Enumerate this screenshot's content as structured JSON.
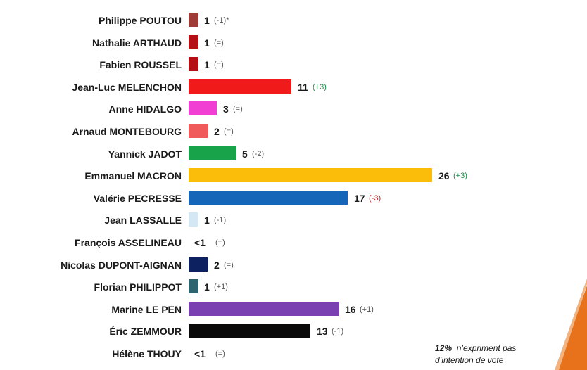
{
  "colors": {
    "neutral_change": "#555555",
    "up_change": "#1e8a4a",
    "down_change": "#c0282d",
    "accent": "#e8721c"
  },
  "chart_data": {
    "type": "bar",
    "orientation": "horizontal",
    "unit": "%",
    "xlim": [
      0,
      26
    ],
    "grid": false,
    "legend": "none",
    "rows": [
      {
        "candidate": "Philippe POUTOU",
        "value": 1,
        "label": "1",
        "change": "(-1)*",
        "trend": "neutral",
        "color": "#9e3b36"
      },
      {
        "candidate": "Nathalie ARTHAUD",
        "value": 1,
        "label": "1",
        "change": "(=)",
        "trend": "neutral",
        "color": "#b30f15"
      },
      {
        "candidate": "Fabien ROUSSEL",
        "value": 1,
        "label": "1",
        "change": "(=)",
        "trend": "neutral",
        "color": "#b30f15"
      },
      {
        "candidate": "Jean-Luc MELENCHON",
        "value": 11,
        "label": "11",
        "change": "(+3)",
        "trend": "up",
        "color": "#f01a1a"
      },
      {
        "candidate": "Anne HIDALGO",
        "value": 3,
        "label": "3",
        "change": "(=)",
        "trend": "neutral",
        "color": "#f13fd3"
      },
      {
        "candidate": "Arnaud MONTEBOURG",
        "value": 2,
        "label": "2",
        "change": "(=)",
        "trend": "neutral",
        "color": "#f05a5a"
      },
      {
        "candidate": "Yannick JADOT",
        "value": 5,
        "label": "5",
        "change": "(-2)",
        "trend": "neutral",
        "color": "#18a24a"
      },
      {
        "candidate": "Emmanuel MACRON",
        "value": 26,
        "label": "26",
        "change": "(+3)",
        "trend": "up",
        "color": "#fbbd09"
      },
      {
        "candidate": "Valérie PECRESSE",
        "value": 17,
        "label": "17",
        "change": "(-3)",
        "trend": "down",
        "color": "#1565b8"
      },
      {
        "candidate": "Jean LASSALLE",
        "value": 1,
        "label": "1",
        "change": "(-1)",
        "trend": "neutral",
        "color": "#d4e8f4"
      },
      {
        "candidate": "François ASSELINEAU",
        "value": 0.5,
        "label": "<1",
        "change": "(=)",
        "trend": "neutral",
        "color": "#ffffff"
      },
      {
        "candidate": "Nicolas DUPONT-AIGNAN",
        "value": 2,
        "label": "2",
        "change": "(=)",
        "trend": "neutral",
        "color": "#0d2060"
      },
      {
        "candidate": "Florian PHILIPPOT",
        "value": 1,
        "label": "1",
        "change": "(+1)",
        "trend": "neutral",
        "color": "#2e6470"
      },
      {
        "candidate": "Marine LE PEN",
        "value": 16,
        "label": "16",
        "change": "(+1)",
        "trend": "neutral",
        "color": "#7a3fb0"
      },
      {
        "candidate": "Éric ZEMMOUR",
        "value": 13,
        "label": "13",
        "change": "(-1)",
        "trend": "neutral",
        "color": "#0a0a0a"
      },
      {
        "candidate": "Hélène THOUY",
        "value": 0.5,
        "label": "<1",
        "change": "(=)",
        "trend": "neutral",
        "color": "#ffffff"
      }
    ]
  },
  "footnote": {
    "percent": "12%",
    "line1_rest": "n’expriment pas",
    "line2": "d’intention de vote"
  }
}
